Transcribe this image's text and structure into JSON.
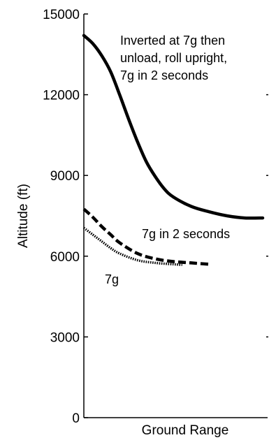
{
  "chart_data": {
    "type": "line",
    "title": "",
    "xlabel": "Ground Range",
    "ylabel": "Altitude (ft)",
    "xlim": [
      0,
      10
    ],
    "ylim": [
      0,
      15000
    ],
    "yticks": [
      0,
      3000,
      6000,
      9000,
      12000,
      15000
    ],
    "ytick_labels": [
      "0",
      "3000",
      "6000",
      "9000",
      "12000",
      "15000"
    ],
    "grid": false,
    "series": [
      {
        "name": "Inverted at 7g then unload, roll upright, 7g in 2 seconds",
        "style": "solid",
        "color": "#000000",
        "x": [
          0,
          0.5,
          1.0,
          1.5,
          2.0,
          2.5,
          3.0,
          3.5,
          4.0,
          4.5,
          5.0,
          6.0,
          7.0,
          8.0,
          9.0,
          10.0
        ],
        "y": [
          14200,
          13900,
          13450,
          12850,
          12000,
          11100,
          10250,
          9500,
          8950,
          8500,
          8200,
          7850,
          7650,
          7500,
          7420,
          7420
        ]
      },
      {
        "name": "7g in 2 seconds",
        "style": "dashed",
        "color": "#000000",
        "x": [
          0,
          0.5,
          1.0,
          1.5,
          2.0,
          3.0,
          4.0,
          5.0,
          6.0,
          7.0
        ],
        "y": [
          7750,
          7450,
          7100,
          6800,
          6500,
          6100,
          5900,
          5800,
          5750,
          5700
        ]
      },
      {
        "name": "7g",
        "style": "dotted",
        "color": "#000000",
        "x": [
          0,
          0.5,
          1.0,
          1.5,
          2.0,
          3.0,
          4.0,
          5.0,
          5.5
        ],
        "y": [
          7050,
          6800,
          6550,
          6300,
          6100,
          5850,
          5750,
          5700,
          5680
        ]
      }
    ],
    "annotations": [
      {
        "lines": [
          "Inverted at 7g then",
          "unload, roll upright,",
          "7g in 2 seconds"
        ]
      },
      {
        "lines": [
          "7g in 2 seconds"
        ]
      },
      {
        "lines": [
          "7g"
        ]
      }
    ]
  }
}
